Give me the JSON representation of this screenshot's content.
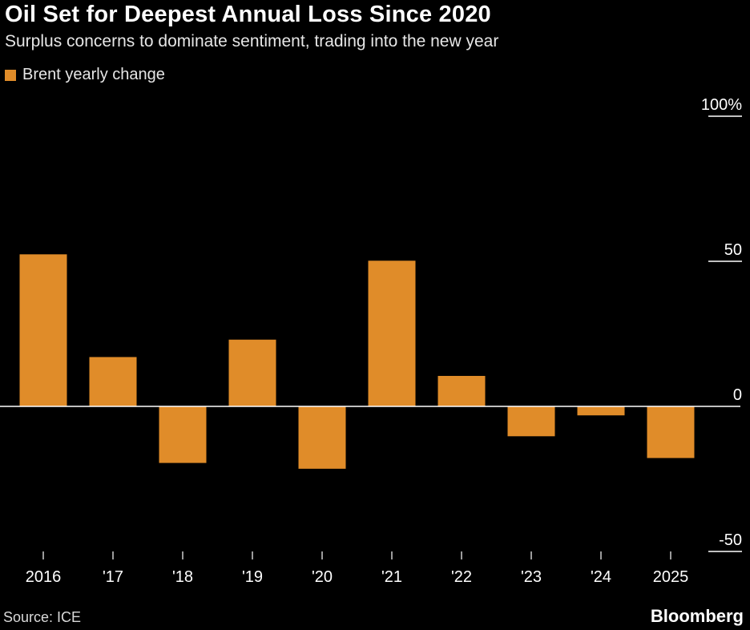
{
  "title": "Oil Set for Deepest Annual Loss Since 2020",
  "subtitle": "Surplus concerns to dominate sentiment, trading into the new year",
  "source": "Source: ICE",
  "brand": "Bloomberg",
  "colors": {
    "background": "#000000",
    "bar": "#e08c29",
    "text": "#ffffff",
    "axis": "#ffffff"
  },
  "chart_data": {
    "type": "bar",
    "title": "Oil Set for Deepest Annual Loss Since 2020",
    "xlabel": "",
    "ylabel": "",
    "categories": [
      "2016",
      "'17",
      "'18",
      "'19",
      "'20",
      "'21",
      "'22",
      "'23",
      "'24",
      "2025"
    ],
    "series": [
      {
        "name": "Brent yearly change",
        "values": [
          52.4,
          17.0,
          -19.5,
          23.0,
          -21.5,
          50.2,
          10.5,
          -10.3,
          -3.1,
          -17.8
        ]
      }
    ],
    "ylim": [
      -50,
      100
    ],
    "y_ticks": [
      100,
      50,
      0,
      -50
    ],
    "y_tick_labels": [
      "100%",
      "50",
      "0",
      "-50"
    ],
    "legend_position": "top-left",
    "grid": false
  }
}
